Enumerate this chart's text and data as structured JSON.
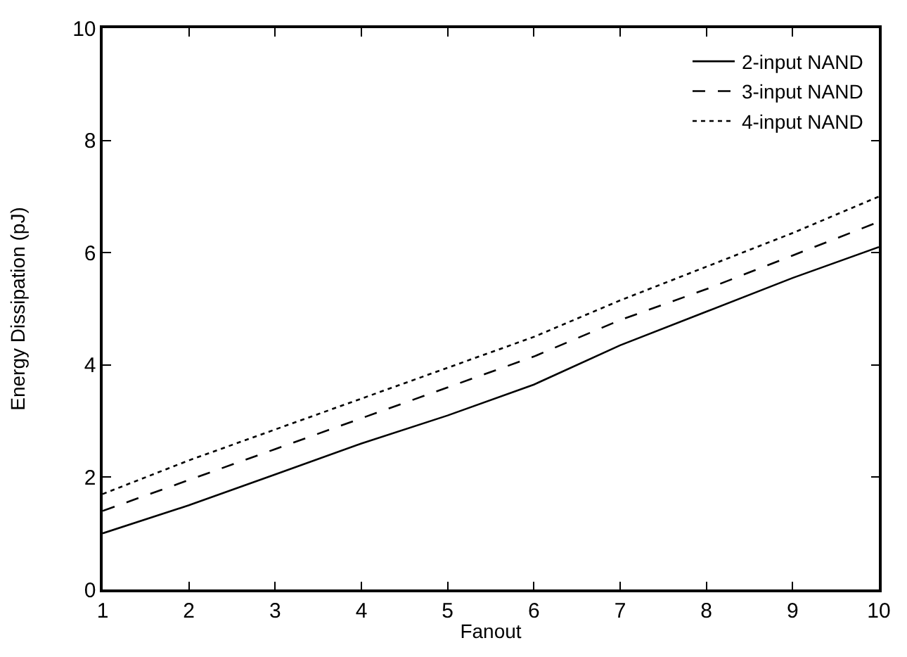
{
  "chart_data": {
    "type": "line",
    "xlabel": "Fanout",
    "ylabel": "Energy Dissipation (pJ)",
    "x": [
      1,
      2,
      3,
      4,
      5,
      6,
      7,
      8,
      9,
      10
    ],
    "series": [
      {
        "name": "2-input NAND",
        "color": "#000000",
        "line_style": "solid",
        "values": [
          1.0,
          1.5,
          2.05,
          2.6,
          3.1,
          3.65,
          4.35,
          4.95,
          5.55,
          6.1
        ]
      },
      {
        "name": "3-input NAND",
        "color": "#000000",
        "line_style": "dashed",
        "values": [
          1.4,
          1.95,
          2.5,
          3.05,
          3.6,
          4.15,
          4.8,
          5.35,
          5.95,
          6.55
        ]
      },
      {
        "name": "4-input NAND",
        "color": "#000000",
        "line_style": "dotted",
        "values": [
          1.7,
          2.3,
          2.85,
          3.4,
          3.95,
          4.5,
          5.15,
          5.75,
          6.35,
          7.0
        ]
      }
    ],
    "xlim": [
      1,
      10
    ],
    "xticks": [
      1,
      2,
      3,
      4,
      5,
      6,
      7,
      8,
      9,
      10
    ],
    "ylim": [
      0,
      10
    ],
    "yticks": [
      0,
      2,
      4,
      6,
      8,
      10
    ],
    "legend": "top right",
    "marker": "none"
  }
}
